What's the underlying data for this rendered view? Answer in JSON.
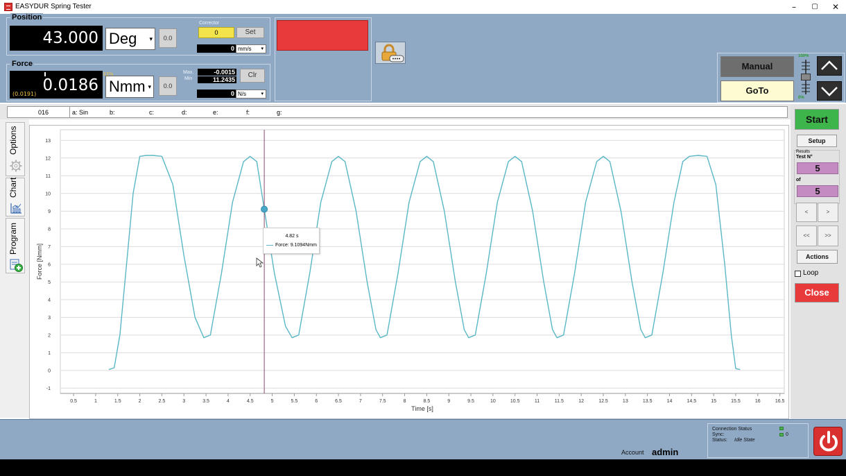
{
  "window": {
    "title": "EASYDUR Spring Tester",
    "min": "–",
    "max": "▢",
    "close": "✕"
  },
  "position": {
    "group_title": "Position",
    "value": "43.000",
    "unit": "Deg",
    "zero_btn": "0.0",
    "corrector_label": "Corrector",
    "corrector_value": "0",
    "set_btn": "Set",
    "speed_value": "0",
    "speed_unit": "mm/s"
  },
  "force": {
    "group_title": "Force",
    "value": "0.0186",
    "unit": "Nmm",
    "zero_btn": "0.0",
    "sub_value": "(0.0191)",
    "percent": "33%",
    "max_label": "Max.",
    "max_value": "-0.0015",
    "min_label": "Min",
    "min_value": "11.2435",
    "clr_btn": "Clr",
    "rate_value": "0",
    "rate_unit": "N/s"
  },
  "indicator": {
    "color": "#e83a3a"
  },
  "controls": {
    "manual_btn": "Manual",
    "goto_btn": "GoTo",
    "slider_max": "100%",
    "slider_min": "0%",
    "slider_level": 0.5
  },
  "channels": {
    "id": "016",
    "a": "a: Sin",
    "b": "b:",
    "c": "c:",
    "d": "d:",
    "e": "e:",
    "f": "f:",
    "g": "g:"
  },
  "tabs": {
    "options": "Options",
    "chart": "Chart",
    "program": "Program"
  },
  "chart_data": {
    "type": "line",
    "xlabel": "Time [s]",
    "ylabel": "Force [Nmm]",
    "xlim": [
      0.2,
      16.6
    ],
    "ylim": [
      -1.3,
      13.6
    ],
    "xticks": [
      0.5,
      1,
      1.5,
      2,
      2.5,
      3,
      3.5,
      4,
      4.5,
      5,
      5.5,
      6,
      6.5,
      7,
      7.5,
      8,
      8.5,
      9,
      9.5,
      10,
      10.5,
      11,
      11.5,
      12,
      12.5,
      13,
      13.5,
      14,
      14.5,
      15,
      15.5,
      16,
      16.5
    ],
    "yticks": [
      -1,
      0,
      1,
      2,
      3,
      4,
      5,
      6,
      7,
      8,
      9,
      10,
      11,
      12,
      13
    ],
    "grid": "horizontal",
    "series": [
      {
        "color": "#5ab7c5",
        "points": [
          [
            1.3,
            0.05
          ],
          [
            1.42,
            0.15
          ],
          [
            1.55,
            2.0
          ],
          [
            1.7,
            6.0
          ],
          [
            1.85,
            10.0
          ],
          [
            2.0,
            12.1
          ],
          [
            2.15,
            12.15
          ],
          [
            2.3,
            12.15
          ],
          [
            2.5,
            12.1
          ],
          [
            2.75,
            10.5
          ],
          [
            3.0,
            6.5
          ],
          [
            3.25,
            3.0
          ],
          [
            3.45,
            1.85
          ],
          [
            3.6,
            2.0
          ],
          [
            3.85,
            5.5
          ],
          [
            4.1,
            9.5
          ],
          [
            4.35,
            11.8
          ],
          [
            4.5,
            12.1
          ],
          [
            4.65,
            11.8
          ],
          [
            4.82,
            9.11
          ],
          [
            5.05,
            5.5
          ],
          [
            5.3,
            2.5
          ],
          [
            5.45,
            1.85
          ],
          [
            5.6,
            2.0
          ],
          [
            5.85,
            5.5
          ],
          [
            6.1,
            9.5
          ],
          [
            6.35,
            11.8
          ],
          [
            6.5,
            12.1
          ],
          [
            6.65,
            11.8
          ],
          [
            6.9,
            9.0
          ],
          [
            7.15,
            5.0
          ],
          [
            7.35,
            2.3
          ],
          [
            7.45,
            1.85
          ],
          [
            7.6,
            2.0
          ],
          [
            7.85,
            5.5
          ],
          [
            8.1,
            9.5
          ],
          [
            8.35,
            11.8
          ],
          [
            8.5,
            12.1
          ],
          [
            8.65,
            11.8
          ],
          [
            8.9,
            9.0
          ],
          [
            9.15,
            5.0
          ],
          [
            9.35,
            2.3
          ],
          [
            9.45,
            1.85
          ],
          [
            9.6,
            2.0
          ],
          [
            9.85,
            5.5
          ],
          [
            10.1,
            9.5
          ],
          [
            10.35,
            11.8
          ],
          [
            10.5,
            12.1
          ],
          [
            10.65,
            11.8
          ],
          [
            10.9,
            9.0
          ],
          [
            11.15,
            5.0
          ],
          [
            11.35,
            2.3
          ],
          [
            11.45,
            1.85
          ],
          [
            11.6,
            2.0
          ],
          [
            11.85,
            5.5
          ],
          [
            12.1,
            9.5
          ],
          [
            12.35,
            11.8
          ],
          [
            12.5,
            12.1
          ],
          [
            12.65,
            11.8
          ],
          [
            12.9,
            9.0
          ],
          [
            13.15,
            5.0
          ],
          [
            13.35,
            2.3
          ],
          [
            13.45,
            1.85
          ],
          [
            13.6,
            2.0
          ],
          [
            13.85,
            5.5
          ],
          [
            14.1,
            9.5
          ],
          [
            14.3,
            11.8
          ],
          [
            14.45,
            12.1
          ],
          [
            14.65,
            12.15
          ],
          [
            14.85,
            12.1
          ],
          [
            15.05,
            10.5
          ],
          [
            15.25,
            6.0
          ],
          [
            15.4,
            2.0
          ],
          [
            15.5,
            0.1
          ],
          [
            15.6,
            0.05
          ]
        ]
      }
    ],
    "cursor": {
      "x": 4.82,
      "y": 9.1094
    },
    "tooltip": {
      "time": "4.82 s",
      "label": "Force: 9.1094Nmm"
    }
  },
  "right": {
    "start_btn": "Start",
    "setup_btn": "Setup",
    "results_label": "Results",
    "testno_label": "Test N°",
    "testno_value": "5",
    "of_label": "of",
    "of_value": "5",
    "prev": "<",
    "next": ">",
    "first": "<<",
    "last": ">>",
    "actions_btn": "Actions",
    "loop_label": "Loop",
    "close_btn": "Close"
  },
  "status": {
    "connection_label": "Connection Status",
    "sync_label": "Sync:",
    "sync_value": "0",
    "status_label": "Status:",
    "status_value": "Idle State",
    "account_label": "Account",
    "account_value": "admin"
  }
}
